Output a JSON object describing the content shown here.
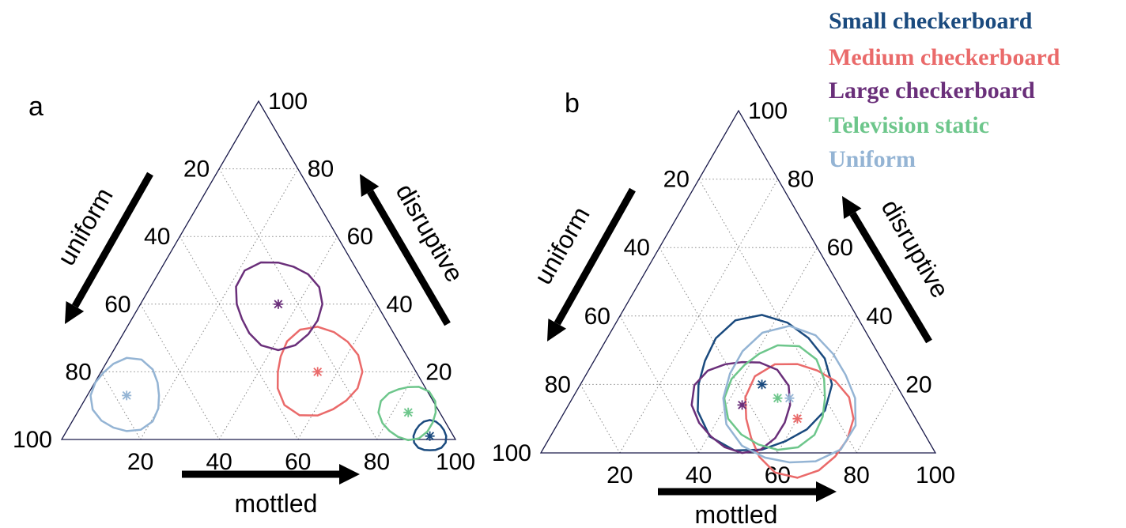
{
  "legend": [
    {
      "label": "Small checkerboard",
      "color": "#1a4a7e"
    },
    {
      "label": "Medium checkerboard",
      "color": "#ea6a6a"
    },
    {
      "label": "Large checkerboard",
      "color": "#6a2f7a"
    },
    {
      "label": "Television static",
      "color": "#6dc68b"
    },
    {
      "label": "Uniform",
      "color": "#94b4d4"
    }
  ],
  "chart_data": [
    {
      "type": "scatter",
      "ternary": true,
      "panel_label": "a",
      "axes": {
        "bottom": {
          "label": "mottled",
          "ticks": [
            "20",
            "40",
            "60",
            "80",
            "100"
          ],
          "range": [
            0,
            100
          ]
        },
        "left": {
          "label": "uniform",
          "ticks": [
            "20",
            "40",
            "60",
            "80",
            "100"
          ],
          "range": [
            0,
            100
          ]
        },
        "right": {
          "label": "disruptive",
          "ticks": [
            "20",
            "40",
            "60",
            "80",
            "100"
          ],
          "range": [
            0,
            100
          ]
        }
      },
      "grid": true,
      "series": [
        {
          "name": "Small checkerboard",
          "mottled": 93,
          "uniform": 6,
          "disruptive": 1,
          "spread": 4
        },
        {
          "name": "Medium checkerboard",
          "mottled": 55,
          "uniform": 25,
          "disruptive": 20,
          "spread": 11
        },
        {
          "name": "Large checkerboard",
          "mottled": 35,
          "uniform": 25,
          "disruptive": 40,
          "spread": 11
        },
        {
          "name": "Television static",
          "mottled": 84,
          "uniform": 8,
          "disruptive": 8,
          "spread": 7
        },
        {
          "name": "Uniform",
          "mottled": 10,
          "uniform": 77,
          "disruptive": 13,
          "spread": 9
        }
      ]
    },
    {
      "type": "scatter",
      "ternary": true,
      "panel_label": "b",
      "axes": {
        "bottom": {
          "label": "mottled",
          "ticks": [
            "20",
            "40",
            "60",
            "80",
            "100"
          ],
          "range": [
            0,
            100
          ]
        },
        "left": {
          "label": "uniform",
          "ticks": [
            "20",
            "40",
            "60",
            "80",
            "100"
          ],
          "range": [
            0,
            100
          ]
        },
        "right": {
          "label": "disruptive",
          "ticks": [
            "20",
            "40",
            "60",
            "80",
            "100"
          ],
          "range": [
            0,
            100
          ]
        }
      },
      "grid": true,
      "series": [
        {
          "name": "Small checkerboard",
          "mottled": 46,
          "uniform": 34,
          "disruptive": 20,
          "spread": 17
        },
        {
          "name": "Medium checkerboard",
          "mottled": 60,
          "uniform": 30,
          "disruptive": 10,
          "spread": 14
        },
        {
          "name": "Large checkerboard",
          "mottled": 44,
          "uniform": 42,
          "disruptive": 14,
          "spread": 12
        },
        {
          "name": "Television static",
          "mottled": 52,
          "uniform": 32,
          "disruptive": 16,
          "spread": 13
        },
        {
          "name": "Uniform",
          "mottled": 55,
          "uniform": 29,
          "disruptive": 16,
          "spread": 17
        }
      ]
    }
  ]
}
